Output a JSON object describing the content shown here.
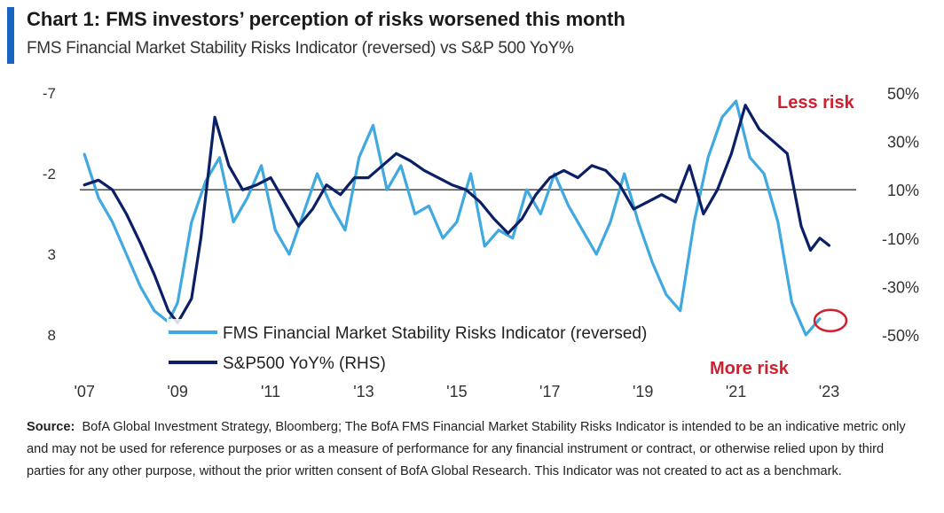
{
  "header": {
    "title": "Chart 1: FMS investors’ perception of risks worsened this month",
    "subtitle": "FMS Financial Market Stability Risks Indicator (reversed) vs S&P 500 YoY%"
  },
  "footer": {
    "source_label": "Source:",
    "source_text": "BofA Global Investment Strategy, Bloomberg; The BofA FMS Financial Market Stability Risks Indicator is intended to be an indicative metric only and may not be used for reference purposes or as a measure of performance for any financial instrument or contract, or otherwise relied upon by third parties for any other purpose, without the prior written consent of BofA Global Research. This Indicator was not created to act as a benchmark."
  },
  "colors": {
    "fms": "#3fa9e0",
    "spx": "#0b1f66",
    "annotation": "#d0202f",
    "reference_line": "#555555"
  },
  "chart_data": {
    "type": "line",
    "x_tick_labels": [
      "'07",
      "'09",
      "'11",
      "'13",
      "'15",
      "'17",
      "'19",
      "'21",
      "'23"
    ],
    "x_ticks": [
      2007,
      2009,
      2011,
      2013,
      2015,
      2017,
      2019,
      2021,
      2023
    ],
    "xlim": [
      2006.9,
      2023.2
    ],
    "y_left": {
      "ticks": [
        -7,
        -2,
        3,
        8
      ],
      "tick_labels": [
        "-7",
        "-2",
        "3",
        "8"
      ],
      "range": [
        -7,
        8
      ],
      "reversed": true
    },
    "y_right": {
      "ticks": [
        50,
        30,
        10,
        -10,
        -30,
        -50
      ],
      "tick_labels": [
        "50%",
        "30%",
        "10%",
        "-10%",
        "-30%",
        "-50%"
      ],
      "range": [
        -50,
        50
      ]
    },
    "reference_line_right": 10,
    "legend": [
      {
        "label": "FMS Financial Market Stability Risks Indicator (reversed)",
        "series": "fms"
      },
      {
        "label": "S&P500 YoY% (RHS)",
        "series": "spx"
      }
    ],
    "annotations": {
      "top": "Less risk",
      "bottom": "More risk"
    },
    "series": [
      {
        "name": "FMS Financial Market Stability Risks Indicator (reversed)",
        "axis": "left",
        "x": [
          2007.0,
          2007.3,
          2007.6,
          2007.9,
          2008.2,
          2008.5,
          2008.8,
          2009.0,
          2009.3,
          2009.6,
          2009.9,
          2010.2,
          2010.5,
          2010.8,
          2011.1,
          2011.4,
          2011.7,
          2012.0,
          2012.3,
          2012.6,
          2012.9,
          2013.2,
          2013.5,
          2013.8,
          2014.1,
          2014.4,
          2014.7,
          2015.0,
          2015.3,
          2015.6,
          2015.9,
          2016.2,
          2016.5,
          2016.8,
          2017.1,
          2017.4,
          2017.7,
          2018.0,
          2018.3,
          2018.6,
          2018.9,
          2019.2,
          2019.5,
          2019.8,
          2020.1,
          2020.4,
          2020.7,
          2021.0,
          2021.3,
          2021.6,
          2021.9,
          2022.2,
          2022.5,
          2022.8
        ],
        "values": [
          -3.2,
          -0.5,
          1.0,
          3.0,
          5.0,
          6.5,
          7.2,
          6.0,
          1.0,
          -1.5,
          -3.0,
          1.0,
          -0.5,
          -2.5,
          1.5,
          3.0,
          0.5,
          -2.0,
          0.0,
          1.5,
          -3.0,
          -5.0,
          -1.0,
          -2.5,
          0.5,
          0.0,
          2.0,
          1.0,
          -2.0,
          2.5,
          1.5,
          2.0,
          -1.0,
          0.5,
          -2.0,
          0.0,
          1.5,
          3.0,
          1.0,
          -2.0,
          1.0,
          3.5,
          5.5,
          6.5,
          1.0,
          -3.0,
          -5.5,
          -6.5,
          -3.0,
          -2.0,
          1.0,
          6.0,
          8.0,
          7.0
        ]
      },
      {
        "name": "S&P500 YoY% (RHS)",
        "axis": "right",
        "x": [
          2007.0,
          2007.3,
          2007.6,
          2007.9,
          2008.2,
          2008.5,
          2008.8,
          2009.0,
          2009.3,
          2009.5,
          2009.8,
          2010.1,
          2010.4,
          2010.7,
          2011.0,
          2011.3,
          2011.6,
          2011.9,
          2012.2,
          2012.5,
          2012.8,
          2013.1,
          2013.4,
          2013.7,
          2014.0,
          2014.3,
          2014.6,
          2014.9,
          2015.2,
          2015.5,
          2015.8,
          2016.1,
          2016.4,
          2016.7,
          2017.0,
          2017.3,
          2017.6,
          2017.9,
          2018.2,
          2018.5,
          2018.8,
          2019.1,
          2019.4,
          2019.7,
          2020.0,
          2020.3,
          2020.6,
          2020.9,
          2021.2,
          2021.5,
          2021.8,
          2022.1,
          2022.4,
          2022.6,
          2022.8,
          2023.0
        ],
        "values": [
          12,
          14,
          10,
          0,
          -12,
          -25,
          -40,
          -45,
          -35,
          -10,
          40,
          20,
          10,
          12,
          15,
          5,
          -5,
          2,
          12,
          8,
          15,
          15,
          20,
          25,
          22,
          18,
          15,
          12,
          10,
          5,
          -2,
          -8,
          -2,
          8,
          15,
          18,
          15,
          20,
          18,
          12,
          2,
          5,
          8,
          5,
          20,
          0,
          10,
          25,
          45,
          35,
          30,
          25,
          -5,
          -15,
          -10,
          -13
        ]
      }
    ]
  }
}
